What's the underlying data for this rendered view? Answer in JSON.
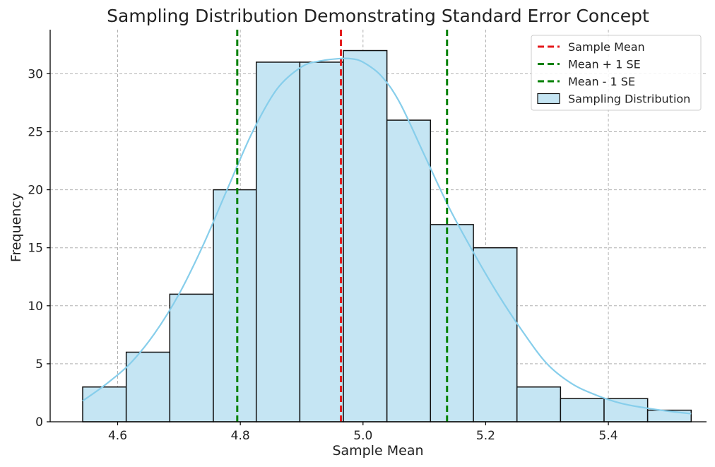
{
  "chart_data": {
    "type": "bar",
    "title": "Sampling Distribution Demonstrating Standard Error Concept",
    "xlabel": "Sample Mean",
    "ylabel": "Frequency",
    "xlim": [
      4.49,
      5.56
    ],
    "ylim": [
      0,
      33.8
    ],
    "xticks": [
      4.6,
      4.8,
      5.0,
      5.2,
      5.4
    ],
    "xtick_labels": [
      "4.6",
      "4.8",
      "5.0",
      "5.2",
      "5.4"
    ],
    "yticks": [
      0,
      5,
      10,
      15,
      20,
      25,
      30
    ],
    "ytick_labels": [
      "0",
      "5",
      "10",
      "15",
      "20",
      "25",
      "30"
    ],
    "grid": true,
    "legend_position": "top-right",
    "bins": [
      {
        "left": 4.543,
        "right": 4.614,
        "count": 3
      },
      {
        "left": 4.614,
        "right": 4.685,
        "count": 6
      },
      {
        "left": 4.685,
        "right": 4.756,
        "count": 11
      },
      {
        "left": 4.756,
        "right": 4.826,
        "count": 20
      },
      {
        "left": 4.826,
        "right": 4.897,
        "count": 31
      },
      {
        "left": 4.897,
        "right": 4.968,
        "count": 31
      },
      {
        "left": 4.968,
        "right": 5.039,
        "count": 32
      },
      {
        "left": 5.039,
        "right": 5.11,
        "count": 26
      },
      {
        "left": 5.11,
        "right": 5.18,
        "count": 17
      },
      {
        "left": 5.18,
        "right": 5.251,
        "count": 15
      },
      {
        "left": 5.251,
        "right": 5.322,
        "count": 3
      },
      {
        "left": 5.322,
        "right": 5.393,
        "count": 2
      },
      {
        "left": 5.393,
        "right": 5.464,
        "count": 2
      },
      {
        "left": 5.464,
        "right": 5.535,
        "count": 1
      }
    ],
    "kde": {
      "x": [
        4.543,
        4.58,
        4.62,
        4.66,
        4.7,
        4.74,
        4.78,
        4.82,
        4.86,
        4.9,
        4.93,
        4.96,
        4.98,
        5.0,
        5.03,
        5.06,
        5.1,
        5.14,
        5.18,
        5.22,
        5.26,
        5.3,
        5.34,
        5.38,
        5.42,
        5.46,
        5.5,
        5.535
      ],
      "y": [
        1.8,
        3.2,
        5.0,
        7.6,
        11.0,
        15.3,
        20.2,
        25.0,
        28.7,
        30.6,
        31.1,
        31.3,
        31.3,
        31.0,
        29.8,
        27.5,
        23.0,
        18.5,
        14.6,
        11.0,
        7.8,
        5.0,
        3.3,
        2.3,
        1.6,
        1.2,
        0.9,
        0.7
      ]
    },
    "lines": [
      {
        "name": "Sample Mean",
        "x": 4.964,
        "color": "#e41a1c"
      },
      {
        "name": "Mean + 1 SE",
        "x": 5.137,
        "color": "#008000"
      },
      {
        "name": "Mean - 1 SE",
        "x": 4.795,
        "color": "#008000"
      }
    ],
    "legend": [
      {
        "label": "Sample Mean",
        "kind": "dashed-line",
        "color": "#e41a1c"
      },
      {
        "label": "Mean + 1 SE",
        "kind": "dashed-line",
        "color": "#008000"
      },
      {
        "label": "Mean - 1 SE",
        "kind": "dashed-line",
        "color": "#008000"
      },
      {
        "label": "Sampling Distribution",
        "kind": "patch",
        "color": "#c5e5f3"
      }
    ],
    "colors": {
      "bar_fill": "#c5e5f3",
      "bar_edge": "#111111",
      "kde_line": "#87ceeb"
    }
  }
}
